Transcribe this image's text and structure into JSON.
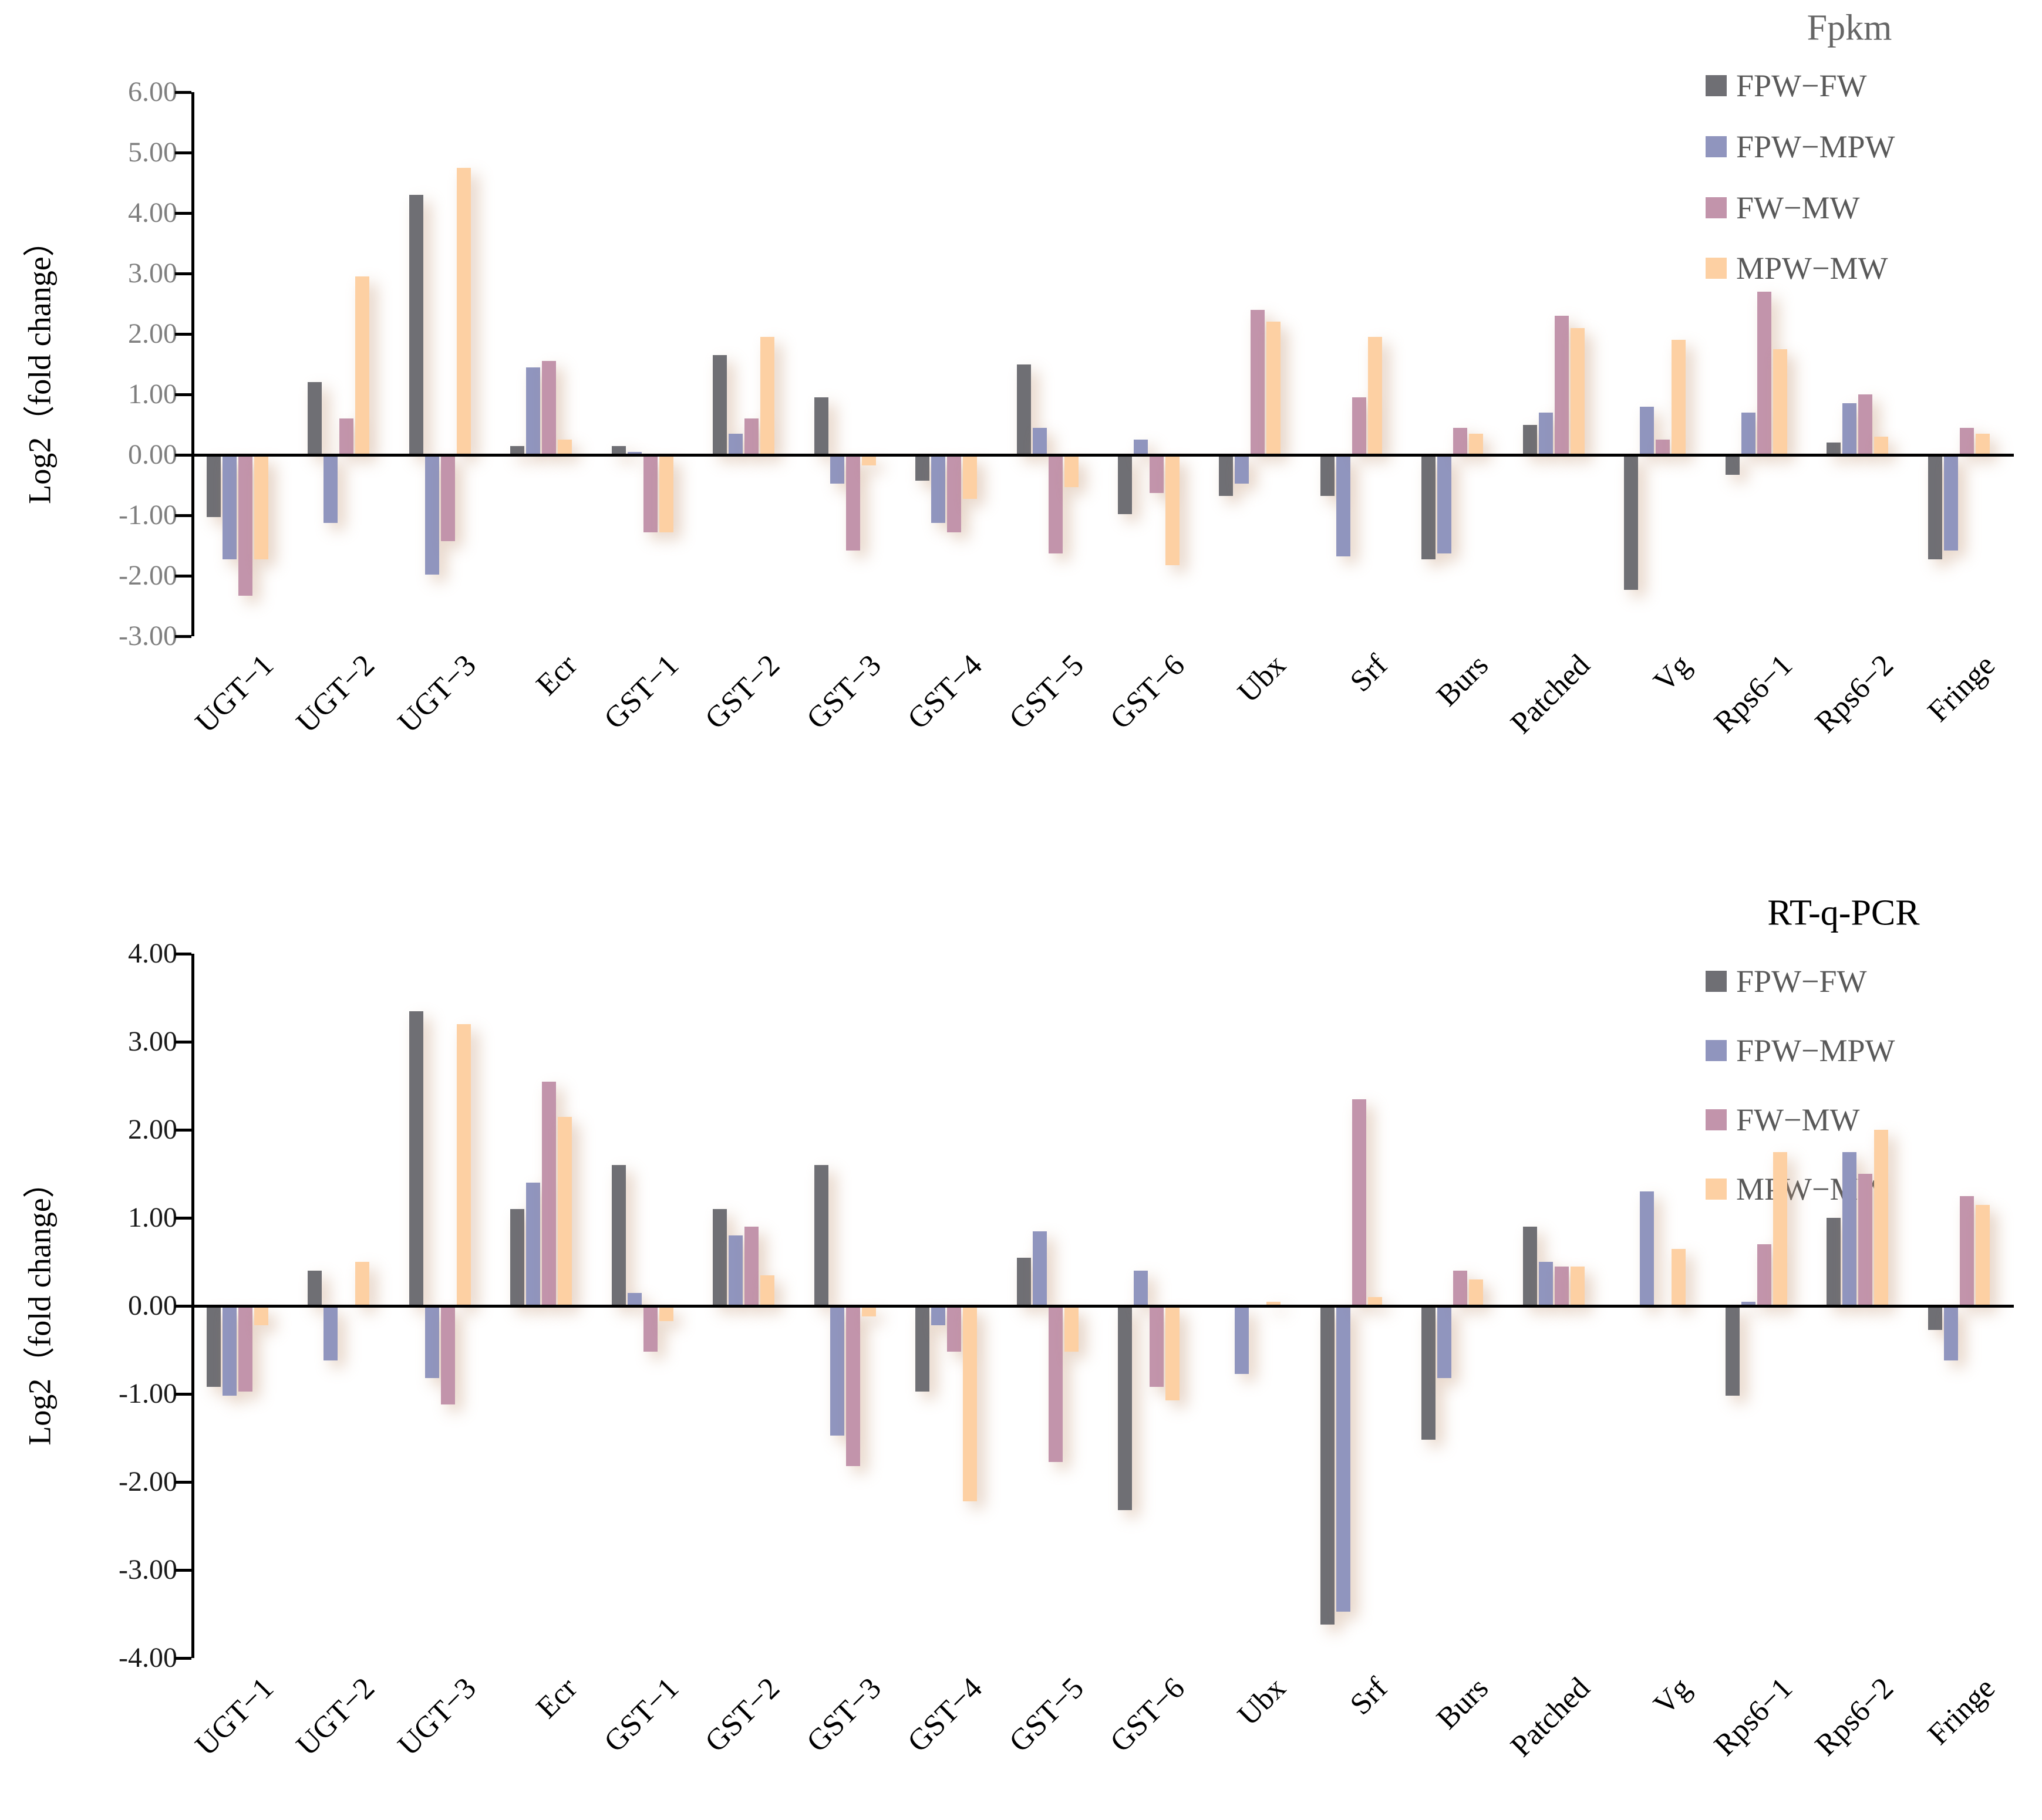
{
  "chart_data": [
    {
      "type": "bar",
      "title": "Fpkm",
      "ylabel": "Log2（fold change）",
      "xlabel": "",
      "ylim": [
        -3,
        6
      ],
      "grid": false,
      "legend_position": "top-right",
      "ytick_labels": [
        "6.00",
        "5.00",
        "4.00",
        "3.00",
        "2.00",
        "1.00",
        "0.00",
        "-1.00",
        "-2.00",
        "-3.00"
      ],
      "categories": [
        "UGT−1",
        "UGT−2",
        "UGT−3",
        "Ecr",
        "GST−1",
        "GST−2",
        "GST−3",
        "GST−4",
        "GST−5",
        "GST−6",
        "Ubx",
        "Srf",
        "Burs",
        "Patched",
        "Vg",
        "Rps6−1",
        "Rps6−2",
        "Fringe"
      ],
      "series": [
        {
          "name": "FPW−FW",
          "color": "#6F6F74",
          "values": [
            -1.0,
            1.2,
            4.3,
            0.15,
            0.15,
            1.65,
            0.95,
            -0.4,
            1.5,
            -0.95,
            -0.65,
            -0.65,
            -1.7,
            0.5,
            -2.2,
            -0.3,
            0.2,
            -1.7
          ]
        },
        {
          "name": "FPW−MPW",
          "color": "#9095BE",
          "values": [
            -1.7,
            -1.1,
            -1.95,
            1.45,
            0.05,
            0.35,
            -0.45,
            -1.1,
            0.45,
            0.25,
            -0.45,
            -1.65,
            -1.6,
            0.7,
            0.8,
            0.7,
            0.85,
            -1.55
          ]
        },
        {
          "name": "FW−MW",
          "color": "#C294AB",
          "values": [
            -2.3,
            0.6,
            -1.4,
            1.55,
            -1.25,
            0.6,
            -1.55,
            -1.25,
            -1.6,
            -0.6,
            2.4,
            0.95,
            0.45,
            2.3,
            0.25,
            2.7,
            1.0,
            0.45
          ]
        },
        {
          "name": "MPW−MW",
          "color": "#FDD0A3",
          "values": [
            -1.7,
            2.95,
            4.75,
            0.25,
            -1.25,
            1.95,
            -0.15,
            -0.7,
            -0.5,
            -1.8,
            2.2,
            1.95,
            0.35,
            2.1,
            1.9,
            1.75,
            0.3,
            0.35
          ]
        }
      ]
    },
    {
      "type": "bar",
      "title": "RT-q-PCR",
      "ylabel": "Log2（fold change）",
      "xlabel": "",
      "ylim": [
        -4,
        4
      ],
      "grid": false,
      "legend_position": "top-right",
      "ytick_labels": [
        "4.00",
        "3.00",
        "2.00",
        "1.00",
        "0.00",
        "-1.00",
        "-2.00",
        "-3.00",
        "-4.00"
      ],
      "categories": [
        "UGT−1",
        "UGT−2",
        "UGT−3",
        "Ecr",
        "GST−1",
        "GST−2",
        "GST−3",
        "GST−4",
        "GST−5",
        "GST−6",
        "Ubx",
        "Srf",
        "Burs",
        "Patched",
        "Vg",
        "Rps6−1",
        "Rps6−2",
        "Fringe"
      ],
      "series": [
        {
          "name": "FPW−FW",
          "color": "#6F6F74",
          "values": [
            -0.9,
            0.4,
            3.35,
            1.1,
            1.6,
            1.1,
            1.6,
            -0.95,
            0.55,
            -2.3,
            0.0,
            -3.6,
            -1.5,
            0.9,
            0.0,
            -1.0,
            1.0,
            -0.25
          ]
        },
        {
          "name": "FPW−MPW",
          "color": "#9095BE",
          "values": [
            -1.0,
            -0.6,
            -0.8,
            1.4,
            0.15,
            0.8,
            -1.45,
            -0.2,
            0.85,
            0.4,
            -0.75,
            -3.45,
            -0.8,
            0.5,
            1.3,
            0.05,
            1.75,
            -0.6
          ]
        },
        {
          "name": "FW−MW",
          "color": "#C294AB",
          "values": [
            -0.95,
            0.0,
            -1.1,
            2.55,
            -0.5,
            0.9,
            -1.8,
            -0.5,
            -1.75,
            -0.9,
            0.0,
            2.35,
            0.4,
            0.45,
            0.0,
            0.7,
            1.5,
            1.25
          ]
        },
        {
          "name": "MPW−MW",
          "color": "#FDD0A3",
          "values": [
            -0.2,
            0.5,
            3.2,
            2.15,
            -0.15,
            0.35,
            -0.1,
            -2.2,
            -0.5,
            -1.05,
            0.05,
            0.1,
            0.3,
            0.45,
            0.65,
            1.75,
            2.0,
            1.15
          ]
        }
      ]
    }
  ]
}
